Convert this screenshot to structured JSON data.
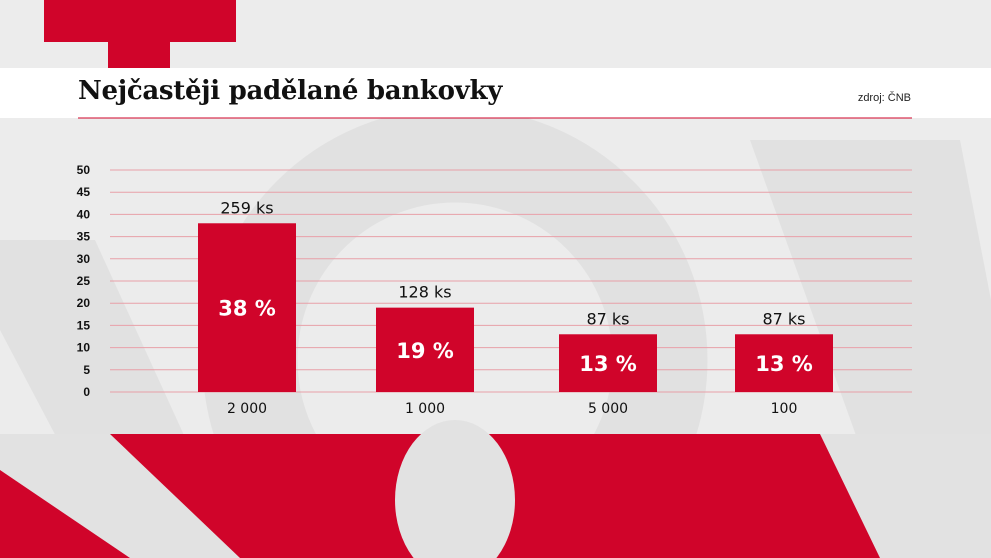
{
  "title": "Nejčastěji padělané bankovky",
  "source": "zdroj: ČNB",
  "colors": {
    "accent": "#d0042a",
    "background": "#ececec",
    "header_bg": "#ffffff",
    "grid": "#e8a0a8",
    "watermark": "#d8d8d8"
  },
  "chart_data": {
    "type": "bar",
    "categories": [
      "2 000",
      "1 000",
      "5 000",
      "100"
    ],
    "values": [
      38,
      19,
      13,
      13
    ],
    "bar_labels": [
      "38 %",
      "19 %",
      "13 %",
      "13 %"
    ],
    "top_labels": [
      "259 ks",
      "128 ks",
      "87 ks",
      "87 ks"
    ],
    "yticks": [
      "0",
      "5",
      "10",
      "15",
      "20",
      "25",
      "30",
      "35",
      "40",
      "45",
      "50"
    ],
    "ylim": [
      0,
      50
    ],
    "grid": true,
    "unit": "%",
    "xlabel": "",
    "ylabel": ""
  }
}
